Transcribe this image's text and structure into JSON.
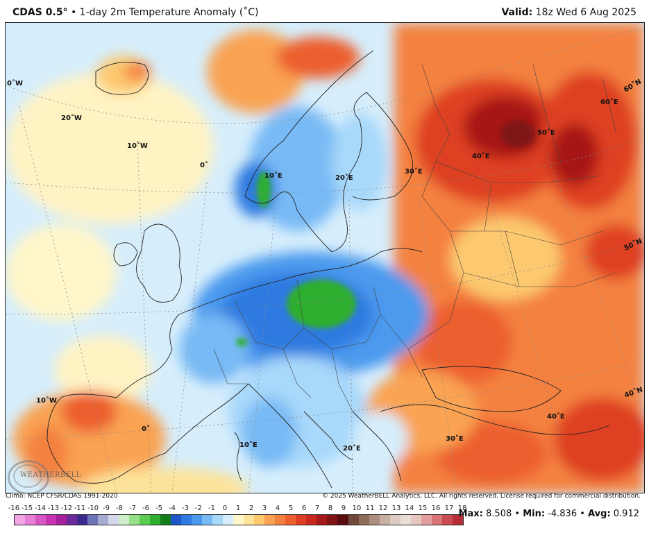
{
  "header": {
    "model": "CDAS 0.5",
    "degree_sign": "°",
    "separator": " • ",
    "title": "1-day 2m Temperature Anomaly (˚C)",
    "valid_label": "Valid:",
    "valid_value": "18z Wed 6 Aug 2025"
  },
  "map": {
    "graticule_labels": [
      {
        "text": "0˚W"
      },
      {
        "text": "20˚W"
      },
      {
        "text": "10˚W"
      },
      {
        "text": "0˚"
      },
      {
        "text": "10˚E"
      },
      {
        "text": "20˚E"
      },
      {
        "text": "30˚E"
      },
      {
        "text": "40˚E"
      },
      {
        "text": "50˚E"
      },
      {
        "text": "60˚E"
      },
      {
        "text": "60˚N"
      },
      {
        "text": "50˚N"
      },
      {
        "text": "40˚N"
      },
      {
        "text": "40˚E"
      },
      {
        "text": "30˚E"
      },
      {
        "text": "20˚E"
      },
      {
        "text": "10˚E"
      },
      {
        "text": "0˚"
      },
      {
        "text": "10˚W"
      }
    ]
  },
  "credits": {
    "climo": "Climo: NCEP CFSR/CDAS 1991-2020",
    "copyright": "© 2025 WeatherBELL Analytics, LLC. All rights reserved. License required for commercial distribution.",
    "logo_text": "WEATHERBELL"
  },
  "colorbar": {
    "ticks": [
      "-16",
      "-15",
      "-14",
      "-13",
      "-12",
      "-11",
      "-10",
      "-9",
      "-8",
      "-7",
      "-6",
      "-5",
      "-4",
      "-3",
      "-2",
      "-1",
      "0",
      "1",
      "2",
      "3",
      "4",
      "5",
      "6",
      "7",
      "8",
      "9",
      "10",
      "11",
      "12",
      "13",
      "14",
      "15",
      "16",
      "17",
      "18"
    ],
    "colors": [
      "#f3a6e6",
      "#e77fd6",
      "#d957c4",
      "#c733b0",
      "#a8209a",
      "#6b2a9a",
      "#3b2a8f",
      "#6e74b8",
      "#a7abd4",
      "#d4d8ea",
      "#cdeec8",
      "#97e08a",
      "#5ccc52",
      "#2fae2f",
      "#137d1c",
      "#1c56c8",
      "#2e7ae0",
      "#4c9aee",
      "#78baf5",
      "#a8d8fa",
      "#d6eefc",
      "#fff6c9",
      "#fde39a",
      "#fcc96f",
      "#f9a352",
      "#f4813f",
      "#ec5f2f",
      "#de3f24",
      "#c8281d",
      "#a71918",
      "#7f1214",
      "#5b0d10",
      "#6f4a3a",
      "#8f6c5a",
      "#ac8f7e",
      "#c7b0a2",
      "#dcccc2",
      "#e9ddd5",
      "#e7c6c0",
      "#e39d9c",
      "#d87475",
      "#c94c50",
      "#b52e36"
    ]
  },
  "stats": {
    "max_label": "Max:",
    "max_value": "8.508",
    "min_label": "Min:",
    "min_value": "-4.836",
    "avg_label": "Avg:",
    "avg_value": "0.912",
    "bullet": "•"
  }
}
